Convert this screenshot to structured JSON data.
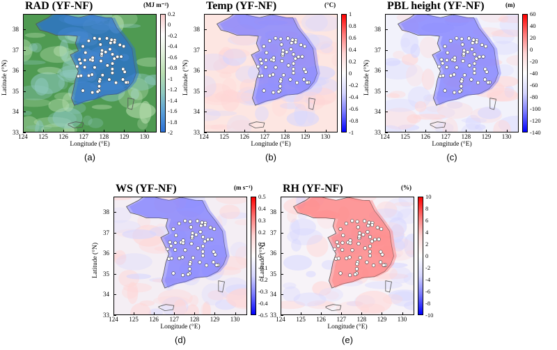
{
  "panels": [
    {
      "id": "a",
      "title": "RAD (YF-NF)",
      "unit": "(MJ m⁻²)",
      "label": "(a)",
      "xlabel": "Longitude (°E)",
      "ylabel": "Latitude (°N)",
      "xticks": [
        "124",
        "125",
        "126",
        "127",
        "128",
        "129",
        "130"
      ],
      "yticks": [
        "38",
        "37",
        "36",
        "35",
        "34",
        "33"
      ],
      "cbar_ticks": [
        "0.2",
        "0",
        "-0.2",
        "-0.4",
        "-0.6",
        "-0.8",
        "-1",
        "-1.2",
        "-1.4",
        "-1.6",
        "-1.8",
        "-2"
      ],
      "cbar_range": [
        -2,
        0.2
      ],
      "colormap": [
        "#2a6fd6",
        "#5aa0d8",
        "#8ec9c0",
        "#b9dfb0",
        "#e2f1dc",
        "#ffffff",
        "#f6c9c9"
      ],
      "background": "#4f9a52"
    },
    {
      "id": "b",
      "title": "Temp (YF-NF)",
      "unit": "(°C)",
      "label": "(b)",
      "xlabel": "Longitude (°E)",
      "ylabel": "Latitude (°N)",
      "xticks": [
        "124",
        "125",
        "126",
        "127",
        "128",
        "129",
        "130"
      ],
      "yticks": [
        "38",
        "37",
        "36",
        "35",
        "34",
        "33"
      ],
      "cbar_ticks": [
        "1",
        "0.8",
        "0.6",
        "0.4",
        "0.2",
        "0",
        "-0.2",
        "-0.4",
        "-0.6",
        "-0.8",
        "-1"
      ],
      "cbar_range": [
        -1,
        1
      ],
      "colormap": [
        "#0000ff",
        "#7a7aff",
        "#d6d6ff",
        "#ffffff",
        "#ffd6d6",
        "#ff7a7a",
        "#ff0000"
      ],
      "background": "#fde6e2"
    },
    {
      "id": "c",
      "title": "PBL height (YF-NF)",
      "unit": "(m)",
      "label": "(c)",
      "xlabel": "Longitude (°E)",
      "ylabel": "Latitude (°N)",
      "xticks": [
        "124",
        "125",
        "126",
        "127",
        "128",
        "129",
        "130"
      ],
      "yticks": [
        "38",
        "37",
        "36",
        "35",
        "34",
        "33"
      ],
      "cbar_ticks": [
        "60",
        "40",
        "20",
        "0",
        "-20",
        "-40",
        "-60",
        "-80",
        "-100",
        "-120",
        "-140"
      ],
      "cbar_range": [
        -140,
        60
      ],
      "colormap": [
        "#0000ff",
        "#7a7aff",
        "#d6d6ff",
        "#ffffff",
        "#ffd6d6",
        "#ff7a7a",
        "#ff0000"
      ],
      "background": "#f2f2fb"
    },
    {
      "id": "d",
      "title": "WS (YF-NF)",
      "unit": "(m s⁻¹)",
      "label": "(d)",
      "xlabel": "Longitude (°E)",
      "ylabel": "Latitude (°N)",
      "xticks": [
        "124",
        "125",
        "126",
        "127",
        "128",
        "129",
        "130"
      ],
      "yticks": [
        "38",
        "37",
        "36",
        "35",
        "34",
        "33"
      ],
      "cbar_ticks": [
        "0.5",
        "0.4",
        "0.3",
        "0.2",
        "0.1",
        "0",
        "-0.1",
        "-0.2",
        "-0.3",
        "-0.4",
        "-0.5"
      ],
      "cbar_range": [
        -0.5,
        0.5
      ],
      "colormap": [
        "#0000ff",
        "#7a7aff",
        "#d6d6ff",
        "#ffffff",
        "#ffd6d6",
        "#ff7a7a",
        "#ff0000"
      ],
      "background": "#f4eef4"
    },
    {
      "id": "e",
      "title": "RH (YF-NF)",
      "unit": "(%)",
      "label": "(e)",
      "xlabel": "Longitude (°E)",
      "ylabel": "Latitude (°N)",
      "xticks": [
        "124",
        "125",
        "126",
        "127",
        "128",
        "129",
        "130"
      ],
      "yticks": [
        "38",
        "37",
        "36",
        "35",
        "34",
        "33"
      ],
      "cbar_ticks": [
        "10",
        "8",
        "6",
        "4",
        "2",
        "0",
        "-2",
        "-4",
        "-6",
        "-8",
        "-10"
      ],
      "cbar_range": [
        -10,
        10
      ],
      "colormap": [
        "#0000ff",
        "#7a7aff",
        "#d6d6ff",
        "#ffffff",
        "#ffd6d6",
        "#ff7a7a",
        "#ff0000"
      ],
      "background": "#f7f3f8"
    }
  ]
}
